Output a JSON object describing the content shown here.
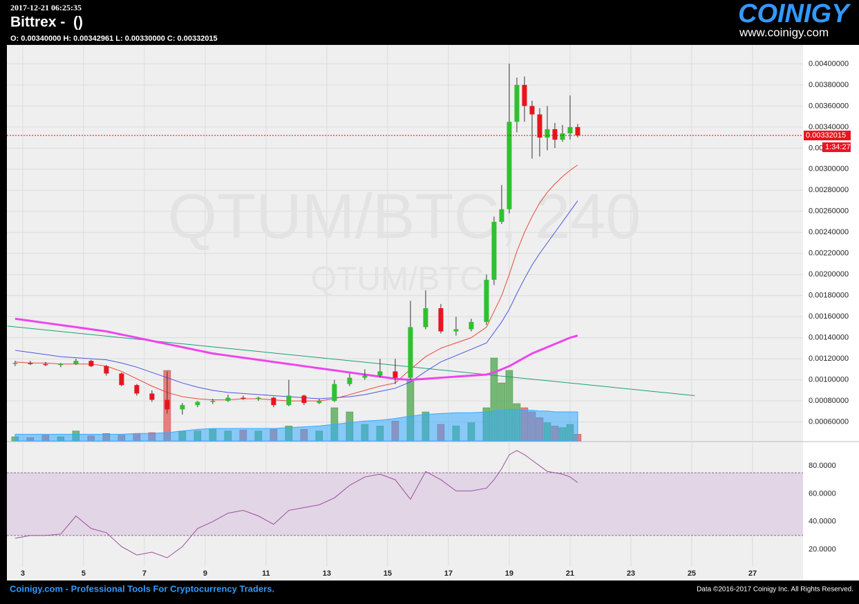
{
  "header": {
    "datetime": "2017-12-21 06:25:35",
    "exchange": "Bittrex -  ()",
    "ohlc": "O: 0.00340000 H: 0.00342961 L: 0.00330000 C: 0.00332015",
    "logo": "COINIGY",
    "logo_url": "www.coinigy.com",
    "watermark": "QTUM/BTC, 240",
    "watermark_sub": "QTUM/BTC",
    "timer": "1:34:27"
  },
  "footer": {
    "tagline": "Coinigy.com - Professional Tools For Cryptocurrency Traders.",
    "copyright": "Data ©2016-2017 Coinigy Inc. All Rights Reserved."
  },
  "chart_data": {
    "type": "candlestick",
    "grid": true,
    "up_color": "#2fc12f",
    "down_color": "#e8141e",
    "xlim": [
      2.48,
      28.66
    ],
    "xticks": [
      3,
      5,
      7,
      9,
      11,
      13,
      15,
      17,
      19,
      21,
      23,
      25,
      27
    ],
    "ylim": [
      0.00042,
      0.00418
    ],
    "yticks": [
      {
        "value": 0.0006,
        "label": "0.00060000"
      },
      {
        "value": 0.0008,
        "label": "0.00080000"
      },
      {
        "value": 0.001,
        "label": "0.00100000"
      },
      {
        "value": 0.0012,
        "label": "0.00120000"
      },
      {
        "value": 0.0014,
        "label": "0.00140000"
      },
      {
        "value": 0.0016,
        "label": "0.00160000"
      },
      {
        "value": 0.0018,
        "label": "0.00180000"
      },
      {
        "value": 0.002,
        "label": "0.00200000"
      },
      {
        "value": 0.0022,
        "label": "0.00220000"
      },
      {
        "value": 0.0024,
        "label": "0.00240000"
      },
      {
        "value": 0.0026,
        "label": "0.00260000"
      },
      {
        "value": 0.0028,
        "label": "0.00280000"
      },
      {
        "value": 0.003,
        "label": "0.00300000"
      },
      {
        "value": 0.0032,
        "label": "0.00320000"
      },
      {
        "value": 0.0034,
        "label": "0.00340000"
      },
      {
        "value": 0.0036,
        "label": "0.00360000"
      },
      {
        "value": 0.0038,
        "label": "0.00380000"
      },
      {
        "value": 0.004,
        "label": "0.00400000"
      }
    ],
    "candles": {
      "x": [
        2.75,
        3.25,
        3.75,
        4.25,
        4.75,
        5.25,
        5.75,
        6.25,
        6.75,
        7.25,
        7.75,
        8.25,
        8.75,
        9.25,
        9.75,
        10.25,
        10.75,
        11.25,
        11.75,
        12.25,
        12.75,
        13.25,
        13.75,
        14.25,
        14.75,
        15.25,
        15.75,
        16.25,
        16.75,
        17.25,
        17.75,
        18.25,
        18.5,
        18.75,
        19.0,
        19.25,
        19.5,
        19.75,
        20.0,
        20.25,
        20.5,
        20.75,
        21.0,
        21.25
      ],
      "open": [
        0.00115,
        0.00116,
        0.00115,
        0.00114,
        0.00115,
        0.00118,
        0.00113,
        0.00106,
        0.00095,
        0.00087,
        0.00081,
        0.00072,
        0.00076,
        0.00079,
        0.0008,
        0.00083,
        0.00082,
        0.00083,
        0.00076,
        0.00085,
        0.00078,
        0.0008,
        0.00096,
        0.00102,
        0.00104,
        0.00108,
        0.00102,
        0.0015,
        0.00168,
        0.00146,
        0.00148,
        0.00155,
        0.00195,
        0.0025,
        0.00262,
        0.00345,
        0.0038,
        0.0036,
        0.00352,
        0.0033,
        0.00338,
        0.00328,
        0.00334,
        0.0034
      ],
      "high": [
        0.00118,
        0.00118,
        0.00117,
        0.00116,
        0.0012,
        0.00119,
        0.00114,
        0.00107,
        0.00096,
        0.0009,
        0.00108,
        0.00078,
        0.0008,
        0.00082,
        0.00086,
        0.00085,
        0.00084,
        0.00084,
        0.001,
        0.00086,
        0.00082,
        0.001,
        0.00106,
        0.0011,
        0.0012,
        0.0012,
        0.00175,
        0.00185,
        0.00172,
        0.0016,
        0.00158,
        0.002,
        0.00255,
        0.00285,
        0.004,
        0.00387,
        0.00388,
        0.00365,
        0.00358,
        0.0036,
        0.00344,
        0.00342,
        0.0037,
        0.00342961
      ],
      "low": [
        0.00113,
        0.00114,
        0.00113,
        0.00112,
        0.00114,
        0.00112,
        0.00104,
        0.00094,
        0.00085,
        0.00079,
        0.00068,
        0.00067,
        0.00074,
        0.00077,
        0.00079,
        0.00081,
        0.0008,
        0.00074,
        0.00075,
        0.00076,
        0.00077,
        0.00079,
        0.00094,
        0.001,
        0.00102,
        0.00096,
        0.001,
        0.00148,
        0.00144,
        0.00142,
        0.00146,
        0.00152,
        0.0019,
        0.00248,
        0.00258,
        0.00335,
        0.00345,
        0.0031,
        0.00312,
        0.00318,
        0.0032,
        0.00326,
        0.00328,
        0.0033
      ],
      "close": [
        0.00116,
        0.00115,
        0.00114,
        0.00115,
        0.00118,
        0.00113,
        0.00106,
        0.00095,
        0.00087,
        0.00081,
        0.00072,
        0.00076,
        0.00079,
        0.0008,
        0.00083,
        0.00082,
        0.00083,
        0.00076,
        0.00085,
        0.00078,
        0.0008,
        0.00096,
        0.00102,
        0.00104,
        0.00108,
        0.00102,
        0.0015,
        0.00168,
        0.00146,
        0.00148,
        0.00155,
        0.00195,
        0.0025,
        0.00262,
        0.00345,
        0.0038,
        0.0036,
        0.00352,
        0.0033,
        0.00338,
        0.00328,
        0.00334,
        0.0034,
        0.00332015
      ]
    },
    "series": [
      {
        "color": "#e8493a",
        "width": 1,
        "values": [
          0.00117,
          0.00116,
          0.00116,
          0.00115,
          0.00115,
          0.00115,
          0.00113,
          0.00108,
          0.00101,
          0.00094,
          0.00088,
          0.00084,
          0.00082,
          0.00081,
          0.00081,
          0.00082,
          0.00082,
          0.00081,
          0.0008,
          0.0008,
          0.0008,
          0.00082,
          0.00086,
          0.0009,
          0.00094,
          0.00097,
          0.0011,
          0.00122,
          0.0013,
          0.00135,
          0.0014,
          0.0015,
          0.00165,
          0.0018,
          0.002,
          0.00222,
          0.0024,
          0.00255,
          0.00268,
          0.00278,
          0.00286,
          0.00293,
          0.00299,
          0.00304
        ]
      },
      {
        "color": "#4a55e0",
        "width": 1,
        "values": [
          0.00128,
          0.00126,
          0.00124,
          0.00122,
          0.00121,
          0.0012,
          0.00119,
          0.00116,
          0.00112,
          0.00107,
          0.00102,
          0.00097,
          0.00093,
          0.0009,
          0.00088,
          0.00087,
          0.00086,
          0.00085,
          0.00084,
          0.00083,
          0.00082,
          0.00083,
          0.00084,
          0.00086,
          0.00089,
          0.00092,
          0.00098,
          0.00108,
          0.00117,
          0.00123,
          0.00129,
          0.00135,
          0.00145,
          0.00155,
          0.00167,
          0.00182,
          0.00196,
          0.00209,
          0.0022,
          0.0023,
          0.0024,
          0.0025,
          0.0026,
          0.0027
        ]
      },
      {
        "color": "#ee44ee",
        "width": 3,
        "values": [
          0.00158,
          0.00156,
          0.00154,
          0.00152,
          0.0015,
          0.00148,
          0.00146,
          0.00143,
          0.0014,
          0.00137,
          0.00134,
          0.00131,
          0.00128,
          0.00125,
          0.00123,
          0.00121,
          0.00119,
          0.00117,
          0.00115,
          0.00113,
          0.00111,
          0.00109,
          0.00107,
          0.00105,
          0.00103,
          0.00101,
          0.001,
          0.00101,
          0.00102,
          0.00103,
          0.00104,
          0.00105,
          0.00107,
          0.0011,
          0.00113,
          0.00117,
          0.00121,
          0.00125,
          0.00128,
          0.00131,
          0.00134,
          0.00137,
          0.0014,
          0.00142
        ]
      }
    ],
    "trendline": {
      "color": "#1a9e77",
      "x": [
        2.5,
        25.1
      ],
      "values": [
        0.00151,
        0.00085
      ]
    },
    "volume": {
      "lim": [
        0,
        100
      ],
      "ma_color": "#33aaff",
      "values": [
        5,
        4,
        7,
        5,
        12,
        6,
        9,
        7,
        9,
        10,
        85,
        12,
        12,
        14,
        12,
        13,
        12,
        14,
        18,
        14,
        12,
        40,
        35,
        20,
        18,
        24,
        75,
        35,
        20,
        18,
        22,
        40,
        100,
        70,
        85,
        45,
        40,
        35,
        28,
        22,
        18,
        16,
        20,
        8
      ],
      "ma": [
        8,
        8,
        8,
        8,
        8,
        8,
        8,
        8,
        9,
        9,
        10,
        12,
        14,
        15,
        15,
        15,
        15,
        15,
        16,
        17,
        18,
        20,
        22,
        24,
        25,
        27,
        30,
        32,
        33,
        34,
        34,
        35,
        36,
        37,
        38,
        38,
        37,
        37,
        36,
        36,
        35,
        35,
        35,
        35
      ]
    },
    "rsi": {
      "color": "#9b4f9b",
      "band": [
        30,
        75
      ],
      "ylim": [
        7.6,
        96.9
      ],
      "yticks": [
        {
          "value": 20,
          "label": "20.0000"
        },
        {
          "value": 40,
          "label": "40.0000"
        },
        {
          "value": 60,
          "label": "60.0000"
        },
        {
          "value": 80,
          "label": "80.0000"
        }
      ],
      "values": [
        28,
        30,
        30,
        31,
        44,
        35,
        32,
        22,
        16,
        18,
        14,
        22,
        35,
        40,
        46,
        48,
        44,
        38,
        48,
        50,
        52,
        57,
        66,
        72,
        74,
        70,
        56,
        76,
        70,
        62,
        62,
        64,
        70,
        78,
        88,
        91,
        88,
        84,
        80,
        76,
        75,
        74,
        72,
        68
      ]
    }
  }
}
